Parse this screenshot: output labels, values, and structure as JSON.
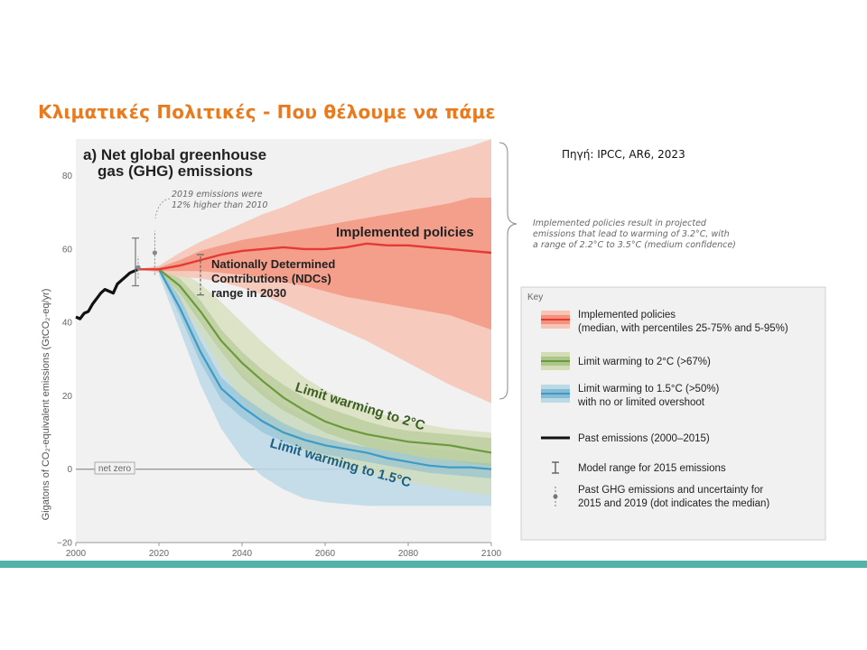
{
  "slide": {
    "title": "Κλιματικές Πολιτικές - Που θέλουμε να πάμε",
    "source": "Πηγή: IPCC, AR6, 2023"
  },
  "chart_data": {
    "type": "area",
    "panel_title_line1": "a) Net global greenhouse",
    "panel_title_line2": "gas (GHG) emissions",
    "ylabel": "Gigatons of CO₂-equivalent emissions (GtCO₂-eq/yr)",
    "xlabel": "",
    "xlim": [
      2000,
      2100
    ],
    "ylim": [
      -20,
      90
    ],
    "x_ticks": [
      2000,
      2020,
      2040,
      2060,
      2080,
      2100
    ],
    "y_ticks": [
      -20,
      0,
      20,
      40,
      60,
      80
    ],
    "net_zero_label": "net zero",
    "annotations": {
      "emissions_2019_line1": "2019 emissions were",
      "emissions_2019_line2": "12% higher than 2010",
      "ndc_line1": "Nationally Determined",
      "ndc_line2": "Contributions (NDCs)",
      "ndc_line3": "range in 2030",
      "implemented_label": "Implemented policies",
      "limit2_label": "Limit warming to 2°C",
      "limit15_label": "Limit warming to 1.5°C",
      "bracket_line1": "Implemented policies result in projected",
      "bracket_line2": "emissions that lead to warming of 3.2°C, with",
      "bracket_line3": "a range of 2.2°C to 3.5°C (medium confidence)"
    },
    "series": [
      {
        "name": "Past emissions (2000–2015)",
        "color": "#111111",
        "x": [
          2000,
          2001,
          2002,
          2003,
          2004,
          2005,
          2006,
          2007,
          2008,
          2009,
          2010,
          2011,
          2012,
          2013,
          2014,
          2015
        ],
        "y": [
          41.5,
          41,
          42.5,
          43,
          45,
          46.5,
          48,
          49,
          48.5,
          48,
          50.5,
          51.5,
          52.5,
          53.5,
          54,
          54.5
        ]
      },
      {
        "name": "Implemented policies",
        "color": "#e53935",
        "x": [
          2015,
          2020,
          2025,
          2030,
          2035,
          2040,
          2045,
          2050,
          2055,
          2060,
          2065,
          2070,
          2075,
          2080,
          2085,
          2090,
          2095,
          2100
        ],
        "median": [
          54.5,
          54.5,
          55.5,
          57,
          58.5,
          59.5,
          60,
          60.5,
          60,
          60,
          60.5,
          61.5,
          61,
          61,
          60.5,
          60,
          59.5,
          59
        ],
        "p25": [
          54.5,
          54,
          54,
          54,
          53.5,
          53,
          52,
          51,
          50,
          48.5,
          47,
          46,
          45,
          44,
          43,
          42,
          40,
          38
        ],
        "p75": [
          54.5,
          55,
          57,
          59.5,
          61,
          62.5,
          63.5,
          64.5,
          65.5,
          66.5,
          67.5,
          68.5,
          69.5,
          70.5,
          71.5,
          72.5,
          74,
          74
        ],
        "p5": [
          54.5,
          53.5,
          52.5,
          52,
          51,
          49.5,
          47.5,
          45,
          42.5,
          40,
          37.5,
          35,
          32,
          29,
          26,
          23,
          20.5,
          18
        ],
        "p95": [
          54.5,
          55.5,
          59,
          62,
          64.5,
          67,
          69.5,
          71.5,
          74,
          76,
          78,
          80,
          82,
          83.5,
          85,
          86.5,
          88,
          90
        ]
      },
      {
        "name": "Limit warming to 2°C (>67%)",
        "color": "#6a9a3c",
        "x": [
          2020,
          2025,
          2030,
          2035,
          2040,
          2045,
          2050,
          2055,
          2060,
          2065,
          2070,
          2075,
          2080,
          2085,
          2090,
          2095,
          2100
        ],
        "median": [
          54.5,
          50,
          43,
          35,
          29,
          24,
          19.5,
          16,
          13,
          11,
          9.5,
          8.5,
          7.5,
          7,
          6.5,
          5.5,
          4.5
        ],
        "p25": [
          54,
          48,
          40,
          32,
          25,
          20,
          16,
          13,
          10,
          8,
          6,
          5,
          4,
          3,
          2.5,
          1.5,
          1
        ],
        "p75": [
          55,
          52,
          46,
          38,
          32,
          27,
          23,
          19.5,
          17,
          15,
          13,
          11.5,
          10.5,
          10,
          9.5,
          9,
          8.5
        ],
        "p5": [
          54,
          46,
          37,
          27,
          19,
          13,
          8.5,
          5,
          2.5,
          0.5,
          -1,
          -2.5,
          -3.5,
          -4.5,
          -5.5,
          -6.5,
          -7
        ],
        "p95": [
          55,
          54,
          50.5,
          45.5,
          40,
          34.5,
          29.5,
          25,
          21.5,
          19,
          16.5,
          14.5,
          13,
          12,
          11,
          10.5,
          10
        ]
      },
      {
        "name": "Limit warming to 1.5°C (>50%) with no or limited overshoot",
        "color": "#3d9bc7",
        "x": [
          2020,
          2025,
          2030,
          2035,
          2040,
          2045,
          2050,
          2055,
          2060,
          2065,
          2070,
          2075,
          2080,
          2085,
          2090,
          2095,
          2100
        ],
        "median": [
          54.5,
          44,
          32,
          22,
          17,
          13,
          10,
          8,
          6.5,
          5.5,
          4.5,
          3,
          2,
          1,
          0.5,
          0.5,
          0
        ],
        "p25": [
          54,
          42,
          29,
          19,
          14,
          10,
          7.5,
          5.5,
          4,
          3,
          2,
          1,
          0,
          -1,
          -1.5,
          -2,
          -2.5
        ],
        "p75": [
          55,
          47,
          35,
          25,
          20,
          16,
          12.5,
          10,
          8.5,
          7,
          6,
          5,
          4,
          3,
          2.5,
          2,
          1.5
        ],
        "p5": [
          53,
          38,
          23,
          11,
          3,
          -2,
          -5.5,
          -8,
          -9,
          -9.5,
          -10,
          -10,
          -10,
          -10,
          -10,
          -10,
          -10
        ],
        "p95": [
          55.5,
          50,
          41,
          32,
          26,
          21.5,
          17.5,
          14.5,
          12,
          10.5,
          9,
          7.5,
          6.5,
          5.5,
          5,
          4.5,
          4
        ]
      }
    ],
    "model_range_2015": {
      "x": 2015,
      "low": 50,
      "high": 63,
      "median": 55
    },
    "past_2015": {
      "x": 2015,
      "median": 55,
      "low": 52,
      "high": 58
    },
    "past_2019": {
      "x": 2019,
      "median": 59,
      "low": 53,
      "high": 65
    },
    "ndc_range_2030": {
      "x": 2030,
      "low": 47.5,
      "high": 58.5
    },
    "legend": {
      "title": "Key",
      "items": [
        {
          "line1": "Implemented policies",
          "line2": "(median, with percentiles 25-75% and 5-95%)",
          "kind": "band-red"
        },
        {
          "line1": "Limit warming to 2°C (>67%)",
          "line2": "",
          "kind": "band-green"
        },
        {
          "line1": "Limit warming to 1.5°C (>50%)",
          "line2": "with no or limited overshoot",
          "kind": "band-blue"
        },
        {
          "line1": "Past emissions (2000–2015)",
          "line2": "",
          "kind": "line-black"
        },
        {
          "line1": "Model range for 2015 emissions",
          "line2": "",
          "kind": "errorbar"
        },
        {
          "line1": "Past GHG emissions and uncertainty for",
          "line2": "2015 and 2019 (dot indicates the median)",
          "kind": "dotbar"
        }
      ]
    }
  }
}
